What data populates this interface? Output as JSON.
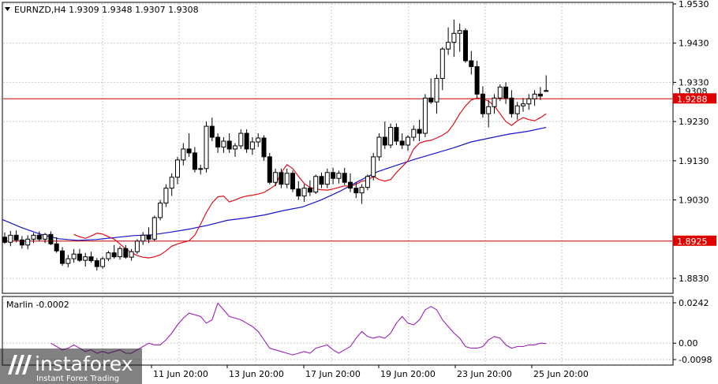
{
  "header": {
    "symbol_label": "EURNZD,H4  1.9309 1.9348 1.9307 1.9308"
  },
  "indicator": {
    "label": "Marlin -0.0002"
  },
  "logo": {
    "brand": "instaforex",
    "tagline": "Instant Forex Trading"
  },
  "colors": {
    "ma_fast": "#e0101a",
    "ma_slow": "#1515c8",
    "oscillator": "#a020c0",
    "level_line": "#cc0000",
    "price_tag_bg": "#e00000",
    "grid": "#c8c8c8",
    "candle": "#000000"
  },
  "chart_data": [
    {
      "type": "candlestick",
      "symbol": "EURNZD",
      "timeframe": "H4",
      "ylim": [
        1.878,
        1.953
      ],
      "y_ticks": [
        "1.9530",
        "1.9430",
        "1.9330",
        "1.9230",
        "1.9130",
        "1.9030",
        "1.8925",
        "1.8830"
      ],
      "x_ticks": [
        "11 Jun 20:00",
        "13 Jun 20:00",
        "17 Jun 20:00",
        "19 Jun 20:00",
        "23 Jun 20:00",
        "25 Jun 20:00"
      ],
      "horizontal_levels": [
        {
          "value": 1.9288,
          "label": "1.9288"
        },
        {
          "value": 1.8925,
          "label": "1.8925"
        }
      ],
      "current_price": {
        "value": 1.9308,
        "label": "1.9308"
      },
      "candles": [
        [
          1.8935,
          1.8947,
          1.8918,
          1.8922
        ],
        [
          1.8922,
          1.8951,
          1.8912,
          1.894
        ],
        [
          1.894,
          1.8952,
          1.8922,
          1.8928
        ],
        [
          1.8928,
          1.8938,
          1.8906,
          1.8915
        ],
        [
          1.8915,
          1.894,
          1.8904,
          1.893
        ],
        [
          1.893,
          1.8946,
          1.892,
          1.894
        ],
        [
          1.894,
          1.895,
          1.8925,
          1.893
        ],
        [
          1.893,
          1.8946,
          1.892,
          1.8942
        ],
        [
          1.8942,
          1.895,
          1.8915,
          1.8918
        ],
        [
          1.8918,
          1.8935,
          1.8895,
          1.89
        ],
        [
          1.89,
          1.891,
          1.8862,
          1.8868
        ],
        [
          1.8868,
          1.889,
          1.8858,
          1.888
        ],
        [
          1.888,
          1.8905,
          1.887,
          1.8892
        ],
        [
          1.8892,
          1.8905,
          1.8872,
          1.8876
        ],
        [
          1.8876,
          1.8895,
          1.886,
          1.8885
        ],
        [
          1.8885,
          1.8898,
          1.887,
          1.8875
        ],
        [
          1.8875,
          1.8882,
          1.885,
          1.886
        ],
        [
          1.886,
          1.8885,
          1.8855,
          1.888
        ],
        [
          1.888,
          1.89,
          1.8874,
          1.8895
        ],
        [
          1.8895,
          1.8915,
          1.888,
          1.8885
        ],
        [
          1.8885,
          1.8912,
          1.8878,
          1.8906
        ],
        [
          1.8906,
          1.8915,
          1.888,
          1.8884
        ],
        [
          1.8884,
          1.8905,
          1.8875,
          1.8898
        ],
        [
          1.8898,
          1.893,
          1.8892,
          1.8925
        ],
        [
          1.8925,
          1.8948,
          1.8915,
          1.894
        ],
        [
          1.894,
          1.896,
          1.892,
          1.893
        ],
        [
          1.893,
          1.899,
          1.8925,
          1.8985
        ],
        [
          1.8985,
          1.903,
          1.8978,
          1.9022
        ],
        [
          1.9022,
          1.907,
          1.9012,
          1.906
        ],
        [
          1.906,
          1.9098,
          1.904,
          1.9088
        ],
        [
          1.9088,
          1.914,
          1.907,
          1.9132
        ],
        [
          1.9132,
          1.9175,
          1.9118,
          1.916
        ],
        [
          1.916,
          1.92,
          1.914,
          1.915
        ],
        [
          1.915,
          1.9165,
          1.91,
          1.9108
        ],
        [
          1.9108,
          1.912,
          1.9095,
          1.911
        ],
        [
          1.911,
          1.923,
          1.91,
          1.9218
        ],
        [
          1.9218,
          1.924,
          1.918,
          1.919
        ],
        [
          1.919,
          1.92,
          1.915,
          1.9165
        ],
        [
          1.9165,
          1.919,
          1.915,
          1.918
        ],
        [
          1.918,
          1.92,
          1.915,
          1.916
        ],
        [
          1.916,
          1.9175,
          1.914,
          1.9168
        ],
        [
          1.9168,
          1.921,
          1.916,
          1.92
        ],
        [
          1.92,
          1.921,
          1.915,
          1.916
        ],
        [
          1.916,
          1.919,
          1.9145,
          1.9178
        ],
        [
          1.9178,
          1.92,
          1.9165,
          1.9188
        ],
        [
          1.9188,
          1.9195,
          1.913,
          1.914
        ],
        [
          1.914,
          1.915,
          1.907,
          1.9075
        ],
        [
          1.9075,
          1.911,
          1.9065,
          1.91
        ],
        [
          1.91,
          1.911,
          1.906,
          1.907
        ],
        [
          1.907,
          1.911,
          1.906,
          1.9098
        ],
        [
          1.9098,
          1.9105,
          1.905,
          1.9058
        ],
        [
          1.9058,
          1.9078,
          1.903,
          1.904
        ],
        [
          1.904,
          1.907,
          1.9025,
          1.906
        ],
        [
          1.906,
          1.908,
          1.904,
          1.905
        ],
        [
          1.905,
          1.9095,
          1.9045,
          1.909
        ],
        [
          1.909,
          1.91,
          1.906,
          1.907
        ],
        [
          1.907,
          1.911,
          1.906,
          1.91
        ],
        [
          1.91,
          1.9112,
          1.907,
          1.9085
        ],
        [
          1.9085,
          1.9105,
          1.9072,
          1.9098
        ],
        [
          1.9098,
          1.9112,
          1.9068,
          1.9075
        ],
        [
          1.9075,
          1.9098,
          1.905,
          1.906
        ],
        [
          1.906,
          1.9075,
          1.9035,
          1.9048
        ],
        [
          1.9048,
          1.907,
          1.902,
          1.9062
        ],
        [
          1.9062,
          1.9095,
          1.9055,
          1.909
        ],
        [
          1.909,
          1.915,
          1.908,
          1.914
        ],
        [
          1.914,
          1.92,
          1.913,
          1.919
        ],
        [
          1.919,
          1.923,
          1.916,
          1.917
        ],
        [
          1.917,
          1.9225,
          1.9162,
          1.9215
        ],
        [
          1.9215,
          1.9225,
          1.917,
          1.918
        ],
        [
          1.918,
          1.92,
          1.916,
          1.917
        ],
        [
          1.917,
          1.9195,
          1.9155,
          1.919
        ],
        [
          1.919,
          1.922,
          1.918,
          1.921
        ],
        [
          1.921,
          1.9235,
          1.918,
          1.92
        ],
        [
          1.92,
          1.93,
          1.919,
          1.929
        ],
        [
          1.929,
          1.934,
          1.9275,
          1.928
        ],
        [
          1.928,
          1.935,
          1.925,
          1.934
        ],
        [
          1.934,
          1.942,
          1.931,
          1.9415
        ],
        [
          1.9415,
          1.947,
          1.94,
          1.9432
        ],
        [
          1.9432,
          1.949,
          1.9395,
          1.9455
        ],
        [
          1.9455,
          1.948,
          1.9408,
          1.9462
        ],
        [
          1.9462,
          1.9468,
          1.938,
          1.9385
        ],
        [
          1.9385,
          1.941,
          1.935,
          1.937
        ],
        [
          1.937,
          1.9385,
          1.929,
          1.93
        ],
        [
          1.93,
          1.932,
          1.924,
          1.925
        ],
        [
          1.925,
          1.9285,
          1.9215,
          1.9268
        ],
        [
          1.9268,
          1.93,
          1.925,
          1.929
        ],
        [
          1.929,
          1.9325,
          1.9282,
          1.9318
        ],
        [
          1.9318,
          1.933,
          1.9275,
          1.929
        ],
        [
          1.929,
          1.931,
          1.924,
          1.925
        ],
        [
          1.925,
          1.928,
          1.9235,
          1.927
        ],
        [
          1.927,
          1.929,
          1.9255,
          1.9275
        ],
        [
          1.9275,
          1.93,
          1.926,
          1.9288
        ],
        [
          1.9288,
          1.931,
          1.927,
          1.93
        ],
        [
          1.93,
          1.9318,
          1.9285,
          1.9295
        ],
        [
          1.9309,
          1.9348,
          1.9307,
          1.9308
        ]
      ],
      "ma_fast_values": [
        1.8942,
        1.8936,
        1.8932,
        1.8938,
        1.8945,
        1.8943,
        1.8936,
        1.893,
        1.8918,
        1.8905,
        1.8896,
        1.8888,
        1.8884,
        1.8882,
        1.8885,
        1.889,
        1.89,
        1.8912,
        1.8918,
        1.8922,
        1.8926,
        1.894,
        1.8968,
        1.8998,
        1.9022,
        1.9038,
        1.904,
        1.9025,
        1.903,
        1.9036,
        1.904,
        1.9042,
        1.9045,
        1.9049,
        1.9058,
        1.9068,
        1.91,
        1.912,
        1.911,
        1.909,
        1.9072,
        1.9062,
        1.9058,
        1.9056,
        1.9055,
        1.9058,
        1.9062,
        1.9066,
        1.9065,
        1.907,
        1.9078,
        1.908,
        1.909,
        1.9082,
        1.9078,
        1.9082,
        1.91,
        1.9115,
        1.913,
        1.916,
        1.9175,
        1.918,
        1.9182,
        1.9188,
        1.9195,
        1.9205,
        1.9225,
        1.925,
        1.927,
        1.9285,
        1.929,
        1.9288,
        1.9282,
        1.927,
        1.925,
        1.923,
        1.922,
        1.9232,
        1.924,
        1.9235,
        1.9232,
        1.924,
        1.925
      ],
      "ma_slow_values": [
        1.898,
        1.896,
        1.8943,
        1.8931,
        1.8927,
        1.8929,
        1.8934,
        1.8939,
        1.8941,
        1.8948,
        1.8956,
        1.8966,
        1.8978,
        1.8984,
        1.8992,
        1.9003,
        1.9012,
        1.903,
        1.9052,
        1.9078,
        1.9102,
        1.9118,
        1.9134,
        1.9148,
        1.9162,
        1.9178,
        1.9188,
        1.9198,
        1.9205,
        1.9215
      ],
      "oscillator": {
        "name": "Marlin",
        "value": -0.0002,
        "ylim": [
          -0.012,
          0.025
        ],
        "y_ticks": [
          "0.0242",
          "0.00",
          "-0.0098"
        ],
        "values": [
          0.0,
          -0.002,
          -0.004,
          -0.003,
          -0.001,
          -0.003,
          -0.005,
          -0.004,
          -0.006,
          -0.005,
          -0.006,
          -0.005,
          -0.004,
          -0.006,
          -0.006,
          -0.004,
          -0.002,
          0.0,
          -0.001,
          -0.001,
          0.002,
          0.006,
          0.011,
          0.015,
          0.018,
          0.017,
          0.016,
          0.012,
          0.014,
          0.024,
          0.02,
          0.016,
          0.015,
          0.014,
          0.012,
          0.01,
          0.007,
          0.002,
          -0.003,
          -0.004,
          -0.005,
          -0.006,
          -0.007,
          -0.006,
          -0.005,
          -0.006,
          -0.003,
          -0.002,
          -0.001,
          -0.004,
          -0.006,
          -0.004,
          -0.002,
          0.003,
          0.007,
          0.004,
          0.003,
          0.004,
          0.003,
          0.006,
          0.012,
          0.016,
          0.012,
          0.011,
          0.014,
          0.02,
          0.022,
          0.02,
          0.014,
          0.01,
          0.006,
          0.003,
          -0.002,
          -0.003,
          -0.003,
          -0.002,
          0.002,
          0.004,
          0.003,
          -0.001,
          -0.003,
          -0.002,
          -0.002,
          -0.001,
          -0.001,
          0.0,
          -0.0002
        ]
      }
    }
  ]
}
